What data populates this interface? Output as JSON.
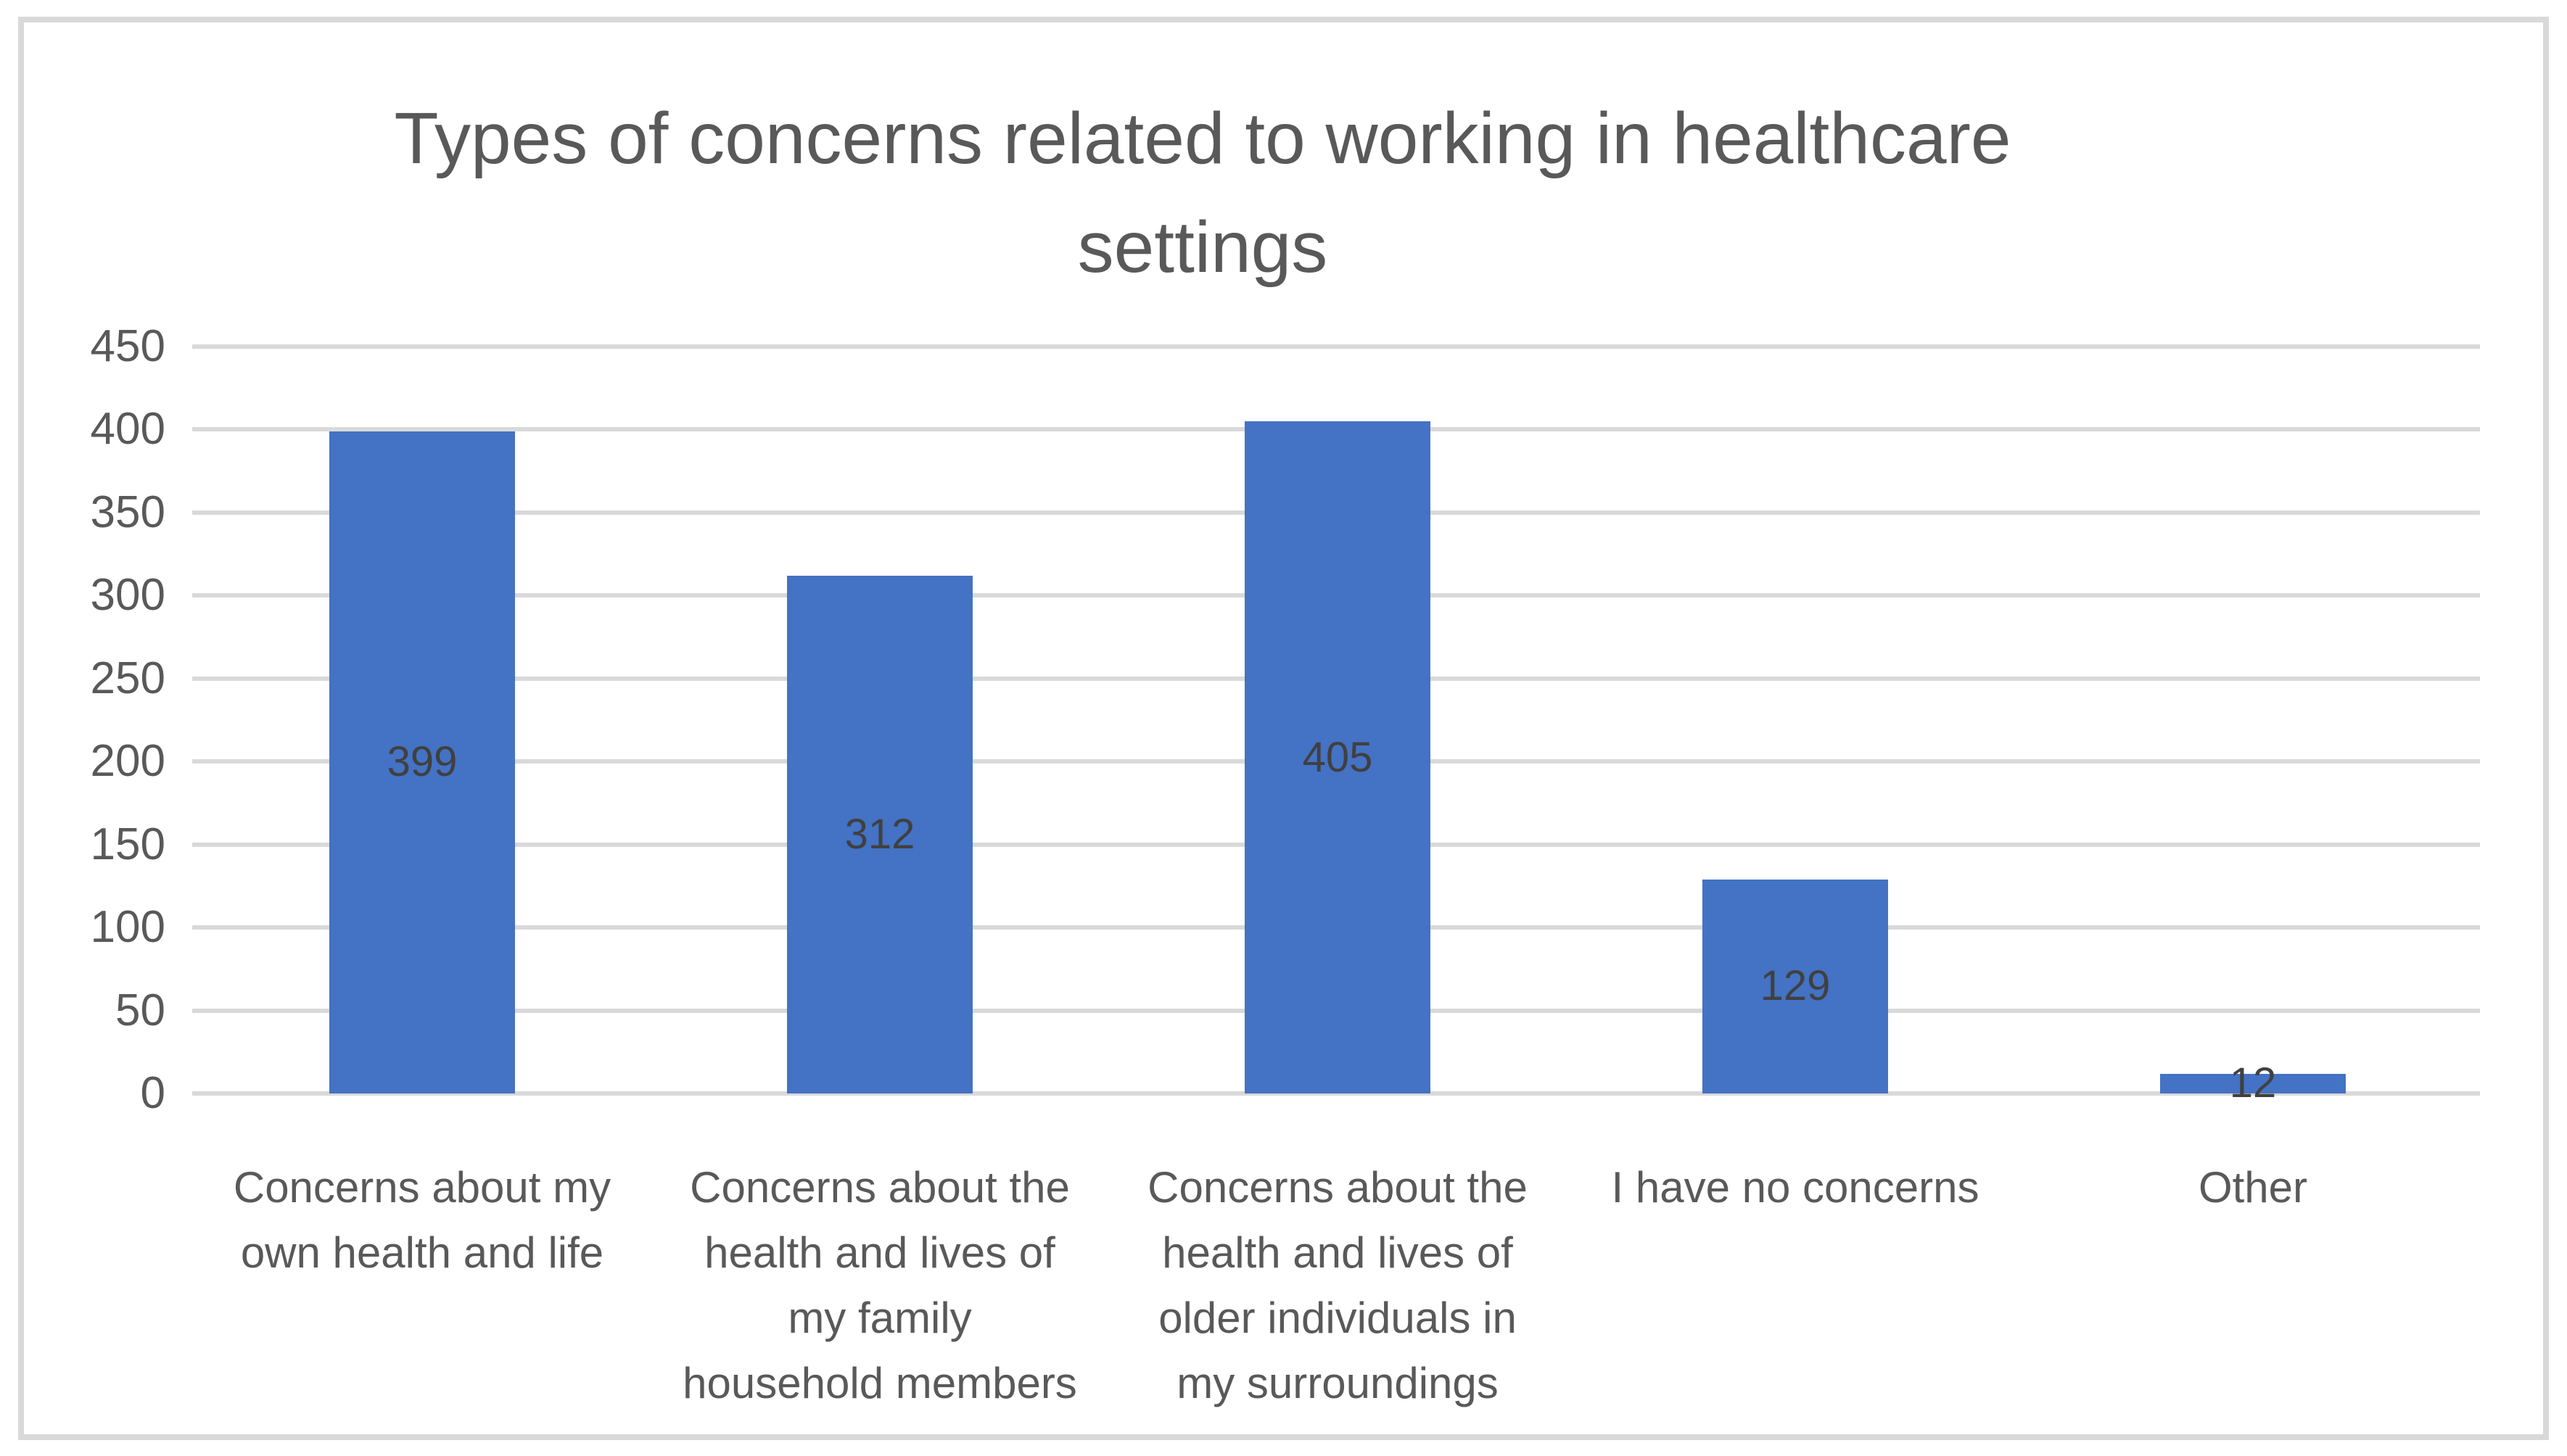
{
  "chart_data": {
    "type": "bar",
    "title": "Types of concerns related to working in healthcare settings",
    "title_wrapped": "Types of concerns related to working in healthcare\nsettings",
    "categories": [
      "Concerns about my own health and life",
      "Concerns about the health and lives of my family household members",
      "Concerns about the health and lives of older individuals in my surroundings",
      "I have no concerns",
      "Other"
    ],
    "categories_wrapped": [
      "Concerns about my\nown health and life",
      "Concerns about the\nhealth and lives of\nmy family\nhousehold members",
      "Concerns about the\nhealth and lives of\nolder individuals in\nmy surroundings",
      "I have no concerns",
      "Other"
    ],
    "values": [
      399,
      312,
      405,
      129,
      12
    ],
    "data_labels": [
      "399",
      "312",
      "405",
      "129",
      "12"
    ],
    "y_ticks": [
      0,
      50,
      100,
      150,
      200,
      250,
      300,
      350,
      400,
      450
    ],
    "ylim": [
      0,
      450
    ],
    "xlabel": "",
    "ylabel": "",
    "legend_position": "none",
    "grid": true,
    "colors": {
      "bar": "#4472C4",
      "gridline": "#D9D9D9",
      "frame_border": "#D9D9D9",
      "title_text": "#595959",
      "axis_text": "#595959",
      "data_label_text": "#404040",
      "background": "#FFFFFF"
    }
  }
}
